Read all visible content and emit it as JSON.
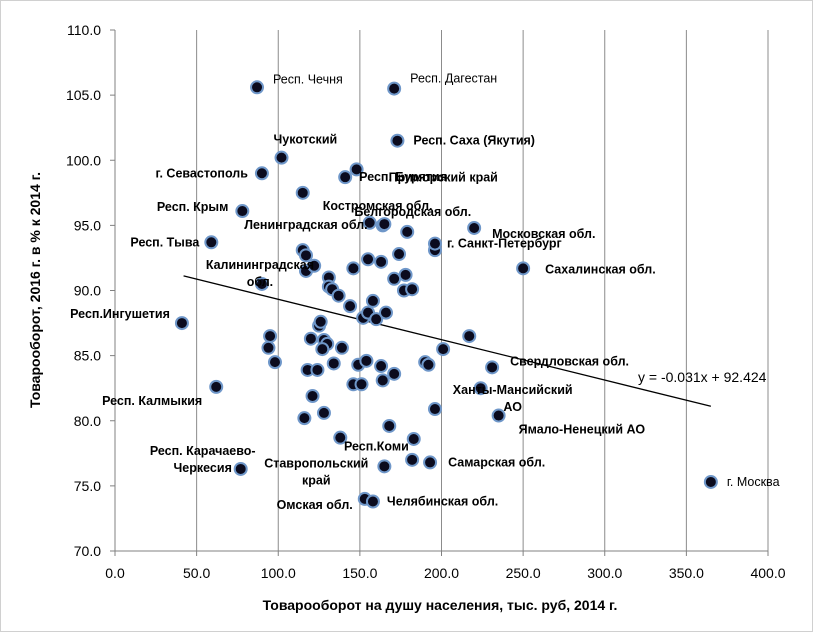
{
  "chart_data": {
    "type": "scatter",
    "xlabel": "Товарооборот на душу населения, тыс. руб, 2014 г.",
    "ylabel": "Товарооборот, 2016 г.  в % к 2014 г.",
    "xlim": [
      0,
      400
    ],
    "ylim": [
      70,
      110
    ],
    "x_ticks": [
      "0.0",
      "50.0",
      "100.0",
      "150.0",
      "200.0",
      "250.0",
      "300.0",
      "350.0",
      "400.0"
    ],
    "y_ticks": [
      "70.0",
      "75.0",
      "80.0",
      "85.0",
      "90.0",
      "95.0",
      "100.0",
      "105.0",
      "110.0"
    ],
    "grid": "vertical",
    "marker_color": "#0b0b1e",
    "marker_edge": "#6f97c9",
    "trendline": {
      "slope": -0.031,
      "intercept": 92.424,
      "x_range": [
        42,
        365
      ],
      "equation": "y = -0.031x + 92.424"
    },
    "labeled_points": [
      {
        "name": "Респ. Чечня",
        "x": 87,
        "y": 105.6
      },
      {
        "name": "Респ. Дагестан",
        "x": 171,
        "y": 105.5
      },
      {
        "name": "Респ. Саха (Якутия)",
        "x": 173,
        "y": 101.5
      },
      {
        "name": "Чукотский",
        "x": 102,
        "y": 100.2
      },
      {
        "name": "Приморский край",
        "x": 148,
        "y": 99.3
      },
      {
        "name": "г. Севастополь",
        "x": 90,
        "y": 99.0
      },
      {
        "name": "Респ. Бурятия",
        "x": 141,
        "y": 98.7
      },
      {
        "name": "Костромская обл.",
        "x": 115,
        "y": 97.5
      },
      {
        "name": "Респ. Крым",
        "x": 78,
        "y": 96.1
      },
      {
        "name": "Белгородская обл.",
        "x": 165,
        "y": 95.1
      },
      {
        "name": "Ленинградская обл.",
        "x": 156,
        "y": 95.2
      },
      {
        "name": "Московская обл.",
        "x": 220,
        "y": 94.8
      },
      {
        "name": "Респ. Тыва",
        "x": 59,
        "y": 93.7
      },
      {
        "name": "г. Санкт-Петербург",
        "x": 196,
        "y": 93.6
      },
      {
        "name": "Сахалинская обл.",
        "x": 250,
        "y": 91.7
      },
      {
        "name": "Калининградская обл.",
        "x": 90,
        "y": 90.5
      },
      {
        "name": "Респ.Ингушетия",
        "x": 41,
        "y": 87.5
      },
      {
        "name": "Свердловская обл.",
        "x": 231,
        "y": 84.1
      },
      {
        "name": "Респ. Калмыкия",
        "x": 62,
        "y": 82.6
      },
      {
        "name": "Ханты-Мансийский АО",
        "x": 224,
        "y": 82.5
      },
      {
        "name": "Ямало-Ненецкий АО",
        "x": 235,
        "y": 80.4
      },
      {
        "name": "Респ.Коми",
        "x": 165,
        "y": 76.5
      },
      {
        "name": "Респ. Карачаево-Черкесия",
        "x": 77,
        "y": 76.3
      },
      {
        "name": "Ставропольский край",
        "x": 138,
        "y": 78.7
      },
      {
        "name": "Самарская обл.",
        "x": 193,
        "y": 76.8
      },
      {
        "name": "Омская обл.",
        "x": 153,
        "y": 74.0
      },
      {
        "name": "Челябинская обл.",
        "x": 158,
        "y": 73.8
      },
      {
        "name": "г. Москва",
        "x": 365,
        "y": 75.3
      }
    ],
    "unlabeled_points": [
      {
        "x": 115,
        "y": 93.1
      },
      {
        "x": 117,
        "y": 92.7
      },
      {
        "x": 117,
        "y": 91.5
      },
      {
        "x": 122,
        "y": 91.9
      },
      {
        "x": 131,
        "y": 91.0
      },
      {
        "x": 131,
        "y": 90.3
      },
      {
        "x": 133,
        "y": 90.1
      },
      {
        "x": 137,
        "y": 89.6
      },
      {
        "x": 144,
        "y": 88.8
      },
      {
        "x": 146,
        "y": 91.7
      },
      {
        "x": 155,
        "y": 92.4
      },
      {
        "x": 163,
        "y": 92.2
      },
      {
        "x": 171,
        "y": 90.9
      },
      {
        "x": 177,
        "y": 90.0
      },
      {
        "x": 178,
        "y": 91.2
      },
      {
        "x": 182,
        "y": 90.1
      },
      {
        "x": 174,
        "y": 92.8
      },
      {
        "x": 179,
        "y": 94.5
      },
      {
        "x": 152,
        "y": 87.9
      },
      {
        "x": 155,
        "y": 88.3
      },
      {
        "x": 158,
        "y": 89.2
      },
      {
        "x": 160,
        "y": 87.8
      },
      {
        "x": 166,
        "y": 88.3
      },
      {
        "x": 120,
        "y": 86.3
      },
      {
        "x": 125,
        "y": 87.3
      },
      {
        "x": 126,
        "y": 87.6
      },
      {
        "x": 128,
        "y": 86.2
      },
      {
        "x": 130,
        "y": 85.9
      },
      {
        "x": 127,
        "y": 85.5
      },
      {
        "x": 95,
        "y": 86.5
      },
      {
        "x": 94,
        "y": 85.6
      },
      {
        "x": 98,
        "y": 84.5
      },
      {
        "x": 118,
        "y": 83.9
      },
      {
        "x": 124,
        "y": 83.9
      },
      {
        "x": 134,
        "y": 84.4
      },
      {
        "x": 139,
        "y": 85.6
      },
      {
        "x": 149,
        "y": 84.3
      },
      {
        "x": 154,
        "y": 84.6
      },
      {
        "x": 163,
        "y": 84.2
      },
      {
        "x": 146,
        "y": 82.8
      },
      {
        "x": 151,
        "y": 82.8
      },
      {
        "x": 164,
        "y": 83.1
      },
      {
        "x": 171,
        "y": 83.6
      },
      {
        "x": 121,
        "y": 81.9
      },
      {
        "x": 116,
        "y": 80.2
      },
      {
        "x": 128,
        "y": 80.6
      },
      {
        "x": 168,
        "y": 79.6
      },
      {
        "x": 183,
        "y": 78.6
      },
      {
        "x": 182,
        "y": 77.0
      },
      {
        "x": 190,
        "y": 84.5
      },
      {
        "x": 192,
        "y": 84.3
      },
      {
        "x": 201,
        "y": 85.5
      },
      {
        "x": 217,
        "y": 86.5
      },
      {
        "x": 196,
        "y": 80.9
      },
      {
        "x": 164,
        "y": 95.0
      },
      {
        "x": 196,
        "y": 93.1
      }
    ]
  }
}
